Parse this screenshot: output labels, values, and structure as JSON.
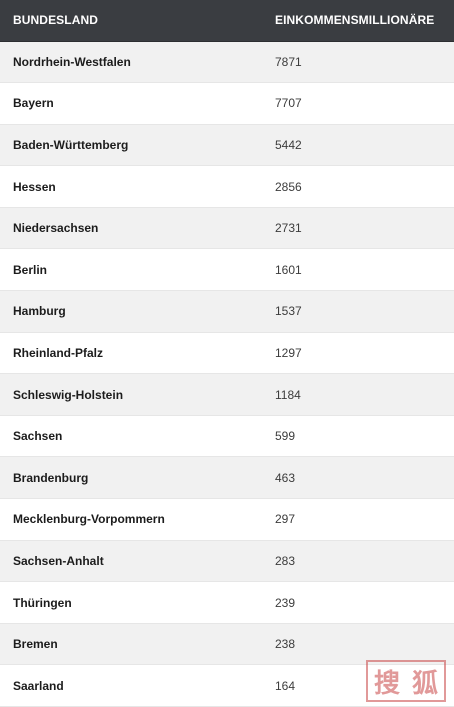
{
  "table": {
    "headers": [
      "BUNDESLAND",
      "EINKOMMENSMILLIONÄRE"
    ],
    "rows": [
      {
        "state": "Nordrhein-Westfalen",
        "value": "7871"
      },
      {
        "state": "Bayern",
        "value": "7707"
      },
      {
        "state": "Baden-Württemberg",
        "value": "5442"
      },
      {
        "state": "Hessen",
        "value": "2856"
      },
      {
        "state": "Niedersachsen",
        "value": "2731"
      },
      {
        "state": "Berlin",
        "value": "1601"
      },
      {
        "state": "Hamburg",
        "value": "1537"
      },
      {
        "state": "Rheinland-Pfalz",
        "value": "1297"
      },
      {
        "state": "Schleswig-Holstein",
        "value": "1184"
      },
      {
        "state": "Sachsen",
        "value": "599"
      },
      {
        "state": "Brandenburg",
        "value": "463"
      },
      {
        "state": "Mecklenburg-Vorpommern",
        "value": "297"
      },
      {
        "state": "Sachsen-Anhalt",
        "value": "283"
      },
      {
        "state": "Thüringen",
        "value": "239"
      },
      {
        "state": "Bremen",
        "value": "238"
      },
      {
        "state": "Saarland",
        "value": "164"
      }
    ]
  },
  "watermark": {
    "chars": [
      "搜",
      "狐"
    ],
    "color": "#c84646"
  }
}
